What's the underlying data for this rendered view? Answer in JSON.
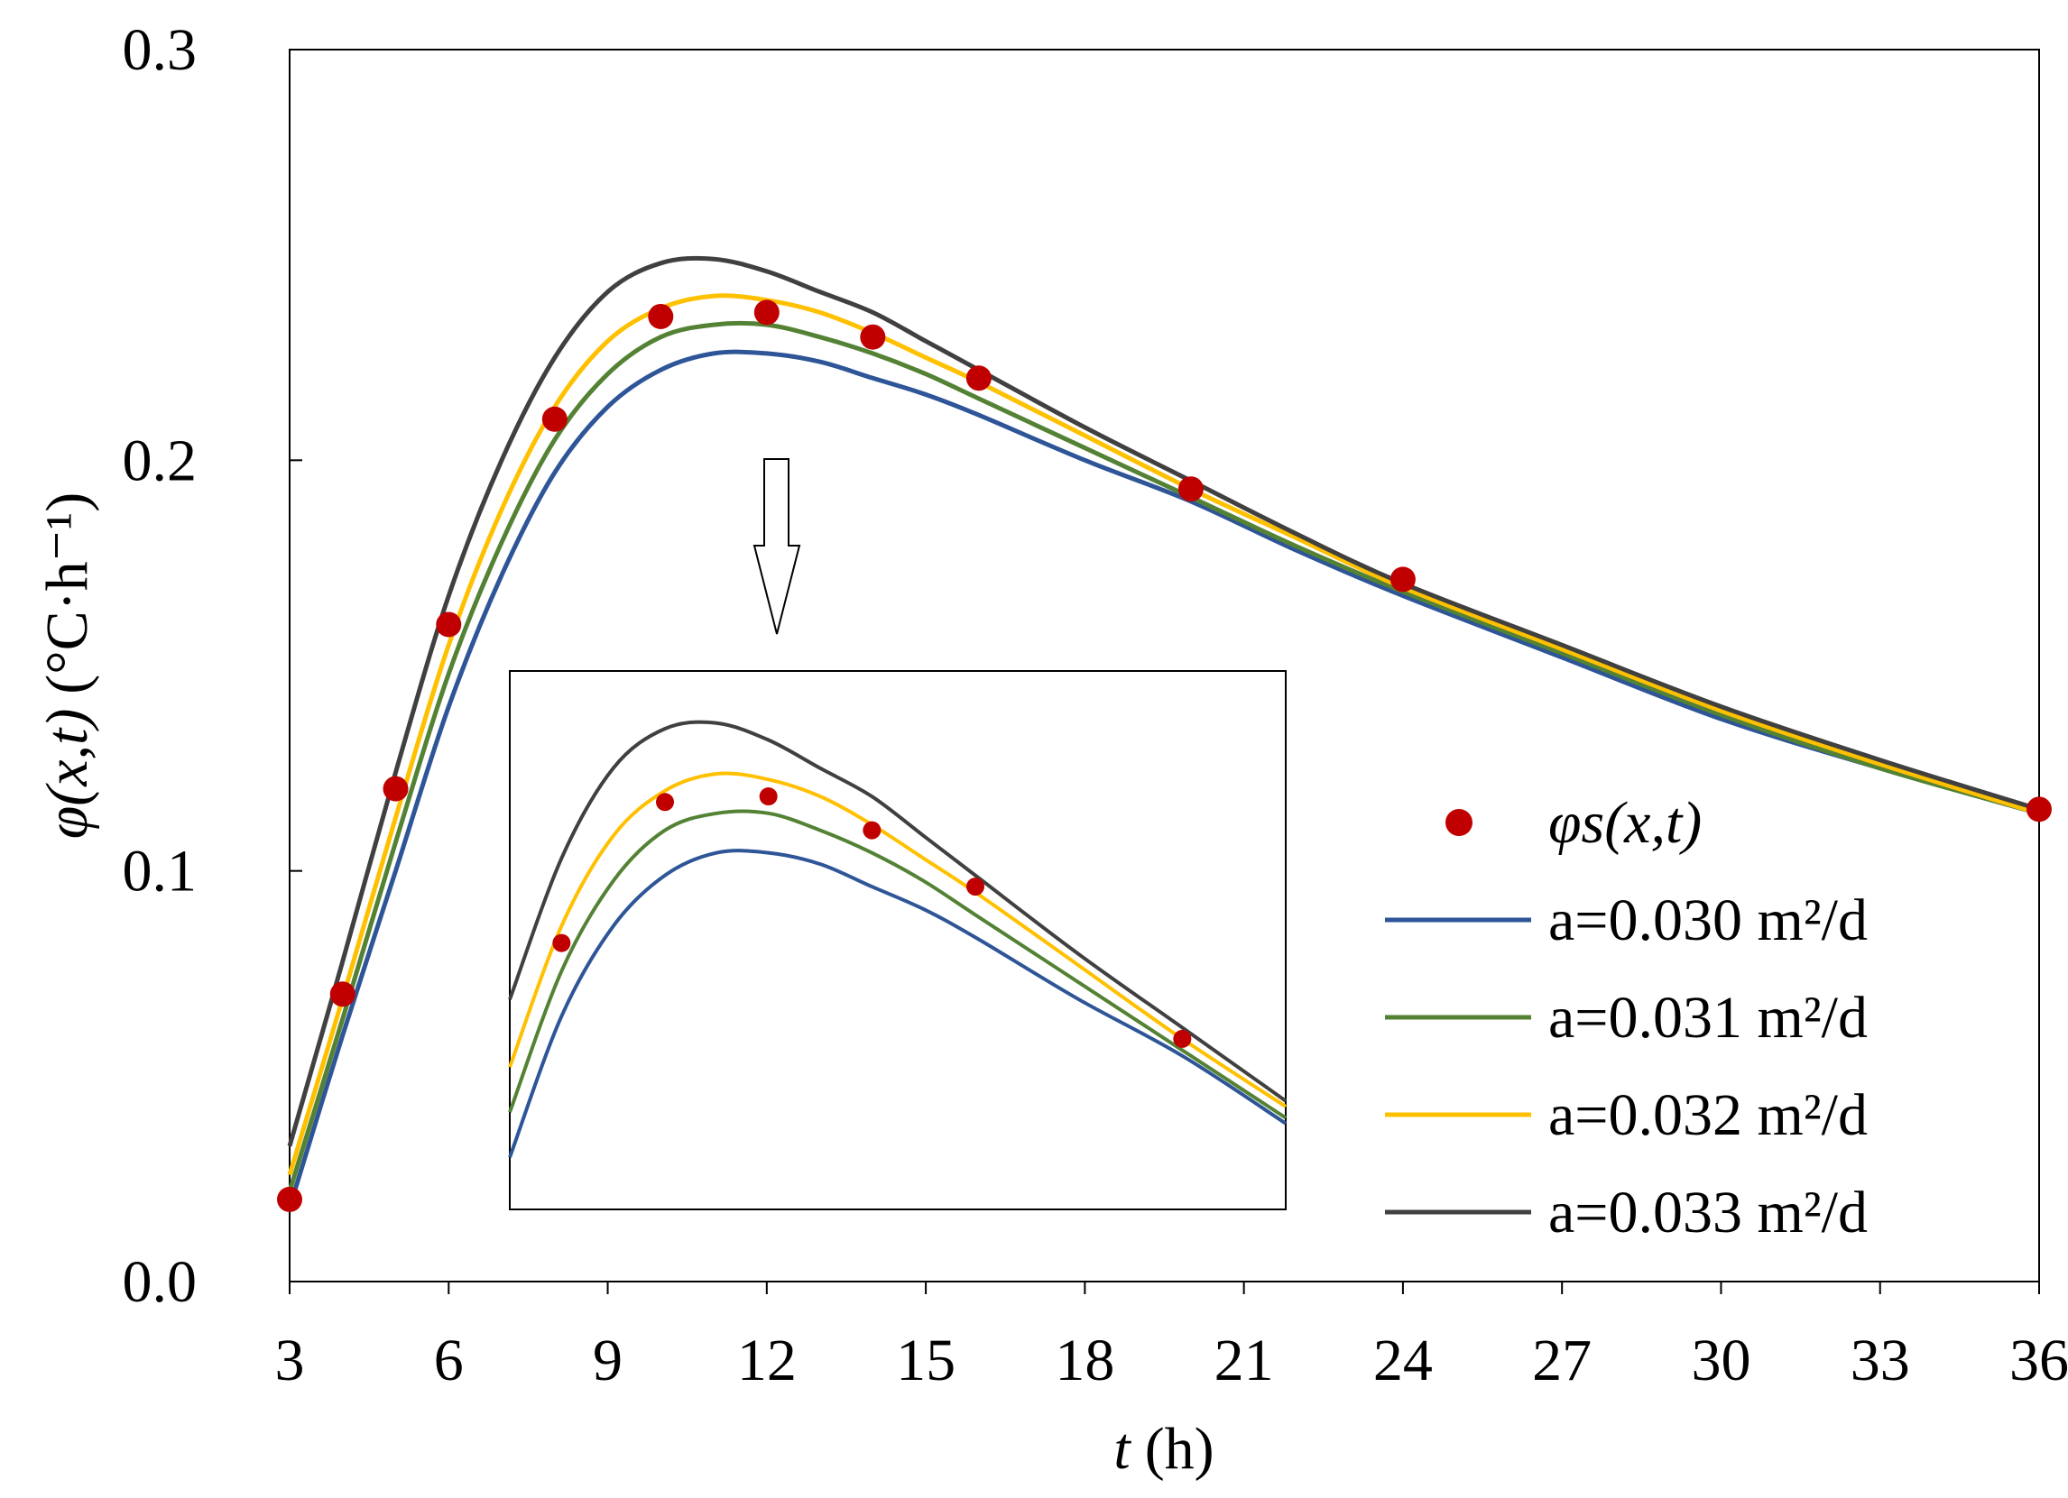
{
  "chart_data": {
    "type": "line",
    "title": "",
    "xlabel": "t (h)",
    "xlabel_var": "t",
    "xlabel_unit": "(h)",
    "ylabel": "φ(x,t) (°C·h⁻¹)",
    "ylabel_parts": {
      "phi": "φ",
      "args": "(x,t)",
      "unit": "(°C·h⁻¹)"
    },
    "xlim": [
      3,
      36
    ],
    "ylim": [
      0,
      0.3
    ],
    "x_ticks": [
      3,
      6,
      9,
      12,
      15,
      18,
      21,
      24,
      27,
      30,
      33,
      36
    ],
    "x_tick_labels": [
      "3",
      "6",
      "9",
      "12",
      "15",
      "18",
      "21",
      "24",
      "27",
      "30",
      "33",
      "36"
    ],
    "y_ticks": [
      0,
      0.1,
      0.2,
      0.3
    ],
    "y_tick_labels": [
      "0.0",
      "0.1",
      "0.2",
      "0.3"
    ],
    "grid": false,
    "legend_position": "right-middle",
    "scatter": {
      "name": "φs(x,t)",
      "color": "#c00000",
      "x": [
        3,
        4,
        5,
        6,
        8,
        10,
        12,
        14,
        16,
        20,
        24,
        36
      ],
      "y": [
        0.02,
        0.07,
        0.12,
        0.16,
        0.21,
        0.235,
        0.236,
        0.23,
        0.22,
        0.193,
        0.171,
        0.115
      ]
    },
    "series": [
      {
        "name": "a=0.030 m²/d",
        "color": "#2e5597",
        "x": [
          3,
          4,
          5,
          6,
          7,
          8,
          9,
          10,
          11,
          12,
          13,
          14,
          15,
          16,
          18,
          20,
          22,
          24,
          27,
          30,
          33,
          36
        ],
        "values": [
          0.018,
          0.06,
          0.1,
          0.14,
          0.172,
          0.197,
          0.213,
          0.222,
          0.226,
          0.226,
          0.224,
          0.22,
          0.216,
          0.211,
          0.2,
          0.19,
          0.178,
          0.167,
          0.152,
          0.137,
          0.125,
          0.114
        ]
      },
      {
        "name": "a=0.031 m²/d",
        "color": "#548235",
        "x": [
          3,
          4,
          5,
          6,
          7,
          8,
          9,
          10,
          11,
          12,
          13,
          14,
          15,
          16,
          18,
          20,
          22,
          24,
          27,
          30,
          33,
          36
        ],
        "values": [
          0.022,
          0.064,
          0.107,
          0.148,
          0.18,
          0.205,
          0.221,
          0.23,
          0.233,
          0.233,
          0.23,
          0.226,
          0.221,
          0.215,
          0.203,
          0.191,
          0.179,
          0.168,
          0.153,
          0.138,
          0.125,
          0.114
        ]
      },
      {
        "name": "a=0.032 m²/d",
        "color": "#ffc000",
        "x": [
          3,
          4,
          5,
          6,
          7,
          8,
          9,
          10,
          11,
          12,
          13,
          14,
          15,
          16,
          18,
          20,
          22,
          24,
          27,
          30,
          33,
          36
        ],
        "values": [
          0.026,
          0.069,
          0.113,
          0.155,
          0.188,
          0.213,
          0.229,
          0.237,
          0.24,
          0.239,
          0.236,
          0.231,
          0.225,
          0.219,
          0.206,
          0.193,
          0.181,
          0.169,
          0.154,
          0.139,
          0.126,
          0.114
        ]
      },
      {
        "name": "a=0.033 m²/d",
        "color": "#404040",
        "x": [
          3,
          4,
          5,
          6,
          7,
          8,
          9,
          10,
          11,
          12,
          13,
          14,
          15,
          16,
          18,
          20,
          22,
          24,
          27,
          30,
          33,
          36
        ],
        "values": [
          0.033,
          0.078,
          0.124,
          0.167,
          0.2,
          0.225,
          0.241,
          0.248,
          0.249,
          0.246,
          0.241,
          0.236,
          0.229,
          0.222,
          0.208,
          0.195,
          0.182,
          0.17,
          0.155,
          0.14,
          0.127,
          0.115
        ]
      }
    ],
    "inset": {
      "zoomed_x_range": [
        7,
        22
      ]
    }
  }
}
